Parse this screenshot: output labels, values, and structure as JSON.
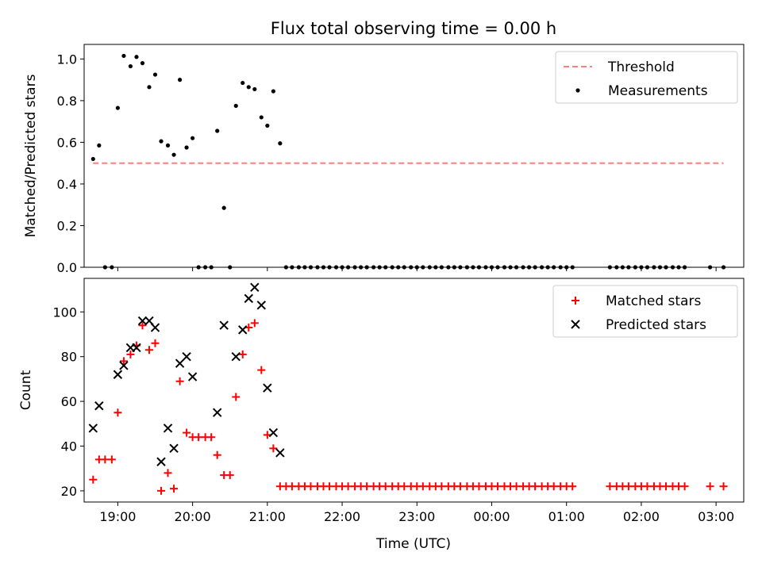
{
  "figure": {
    "title": "Flux total observing time = 0.00 h",
    "xlabel": "Time (UTC)",
    "x_ticks": [
      "19:00",
      "20:00",
      "21:00",
      "22:00",
      "23:00",
      "00:00",
      "01:00",
      "02:00",
      "03:00"
    ]
  },
  "chart_data": [
    {
      "type": "scatter",
      "ylabel": "Matched/Predicted stars",
      "xlim": [
        18.55,
        27.37
      ],
      "ylim": [
        0,
        1.07
      ],
      "y_ticks": [
        "0.0",
        "0.2",
        "0.4",
        "0.6",
        "0.8",
        "1.0"
      ],
      "y_tick_values": [
        0,
        0.2,
        0.4,
        0.6,
        0.8,
        1.0
      ],
      "legend": {
        "position": "top-right",
        "entries": [
          "Threshold",
          "Measurements"
        ]
      },
      "series": [
        {
          "name": "Threshold",
          "kind": "dashed-line",
          "color": "#ff7f7f",
          "x": [
            18.67,
            27.1
          ],
          "y": [
            0.5,
            0.5
          ]
        },
        {
          "name": "Measurements",
          "kind": "dot",
          "color": "#000000",
          "points": [
            [
              18.67,
              0.52
            ],
            [
              18.75,
              0.585
            ],
            [
              18.83,
              0
            ],
            [
              18.92,
              0
            ],
            [
              19.0,
              0.765
            ],
            [
              19.08,
              1.015
            ],
            [
              19.17,
              0.965
            ],
            [
              19.25,
              1.01
            ],
            [
              19.33,
              0.98
            ],
            [
              19.42,
              0.865
            ],
            [
              19.5,
              0.925
            ],
            [
              19.58,
              0.605
            ],
            [
              19.67,
              0.585
            ],
            [
              19.75,
              0.54
            ],
            [
              19.83,
              0.9
            ],
            [
              19.92,
              0.575
            ],
            [
              20.0,
              0.62
            ],
            [
              20.08,
              0
            ],
            [
              20.17,
              0
            ],
            [
              20.25,
              0
            ],
            [
              20.33,
              0.655
            ],
            [
              20.42,
              0.285
            ],
            [
              20.5,
              0
            ],
            [
              20.58,
              0.775
            ],
            [
              20.67,
              0.885
            ],
            [
              20.75,
              0.865
            ],
            [
              20.83,
              0.855
            ],
            [
              20.92,
              0.72
            ],
            [
              21.0,
              0.68
            ],
            [
              21.08,
              0.845
            ],
            [
              21.17,
              0.595
            ],
            [
              21.25,
              0
            ],
            [
              21.33,
              0
            ],
            [
              21.42,
              0
            ],
            [
              21.5,
              0
            ],
            [
              21.58,
              0
            ],
            [
              21.67,
              0
            ],
            [
              21.75,
              0
            ],
            [
              21.83,
              0
            ],
            [
              21.92,
              0
            ],
            [
              22.0,
              0
            ],
            [
              22.08,
              0
            ],
            [
              22.17,
              0
            ],
            [
              22.25,
              0
            ],
            [
              22.33,
              0
            ],
            [
              22.42,
              0
            ],
            [
              22.5,
              0
            ],
            [
              22.58,
              0
            ],
            [
              22.67,
              0
            ],
            [
              22.75,
              0
            ],
            [
              22.83,
              0
            ],
            [
              22.92,
              0
            ],
            [
              23.0,
              0
            ],
            [
              23.08,
              0
            ],
            [
              23.17,
              0
            ],
            [
              23.25,
              0
            ],
            [
              23.33,
              0
            ],
            [
              23.42,
              0
            ],
            [
              23.5,
              0
            ],
            [
              23.58,
              0
            ],
            [
              23.67,
              0
            ],
            [
              23.75,
              0
            ],
            [
              23.83,
              0
            ],
            [
              23.92,
              0
            ],
            [
              24.0,
              0
            ],
            [
              24.08,
              0
            ],
            [
              24.17,
              0
            ],
            [
              24.25,
              0
            ],
            [
              24.33,
              0
            ],
            [
              24.42,
              0
            ],
            [
              24.5,
              0
            ],
            [
              24.58,
              0
            ],
            [
              24.67,
              0
            ],
            [
              24.75,
              0
            ],
            [
              24.83,
              0
            ],
            [
              24.92,
              0
            ],
            [
              25.0,
              0
            ],
            [
              25.08,
              0
            ],
            [
              25.58,
              0
            ],
            [
              25.67,
              0
            ],
            [
              25.75,
              0
            ],
            [
              25.83,
              0
            ],
            [
              25.92,
              0
            ],
            [
              26.0,
              0
            ],
            [
              26.08,
              0
            ],
            [
              26.17,
              0
            ],
            [
              26.25,
              0
            ],
            [
              26.33,
              0
            ],
            [
              26.42,
              0
            ],
            [
              26.5,
              0
            ],
            [
              26.58,
              0
            ],
            [
              26.92,
              0
            ],
            [
              27.1,
              0
            ]
          ]
        }
      ]
    },
    {
      "type": "scatter",
      "ylabel": "Count",
      "xlim": [
        18.55,
        27.37
      ],
      "ylim": [
        15,
        115
      ],
      "y_ticks": [
        "20",
        "40",
        "60",
        "80",
        "100"
      ],
      "y_tick_values": [
        20,
        40,
        60,
        80,
        100
      ],
      "legend": {
        "position": "top-right",
        "entries": [
          "Matched stars",
          "Predicted stars"
        ]
      },
      "series": [
        {
          "name": "Matched stars",
          "kind": "plus",
          "color": "#ff0000",
          "points": [
            [
              18.67,
              25
            ],
            [
              18.75,
              34
            ],
            [
              18.83,
              34
            ],
            [
              18.92,
              34
            ],
            [
              19.0,
              55
            ],
            [
              19.08,
              78
            ],
            [
              19.17,
              81
            ],
            [
              19.25,
              85
            ],
            [
              19.33,
              94
            ],
            [
              19.42,
              83
            ],
            [
              19.5,
              86
            ],
            [
              19.58,
              20
            ],
            [
              19.67,
              28
            ],
            [
              19.75,
              21
            ],
            [
              19.83,
              69
            ],
            [
              19.92,
              46
            ],
            [
              20.0,
              44
            ],
            [
              20.08,
              44
            ],
            [
              20.17,
              44
            ],
            [
              20.25,
              44
            ],
            [
              20.33,
              36
            ],
            [
              20.42,
              27
            ],
            [
              20.5,
              27
            ],
            [
              20.58,
              62
            ],
            [
              20.67,
              81
            ],
            [
              20.75,
              93
            ],
            [
              20.83,
              95
            ],
            [
              20.92,
              74
            ],
            [
              21.0,
              45
            ],
            [
              21.08,
              39
            ],
            [
              21.17,
              22
            ],
            [
              21.25,
              22
            ],
            [
              21.33,
              22
            ],
            [
              21.42,
              22
            ],
            [
              21.5,
              22
            ],
            [
              21.58,
              22
            ],
            [
              21.67,
              22
            ],
            [
              21.75,
              22
            ],
            [
              21.83,
              22
            ],
            [
              21.92,
              22
            ],
            [
              22.0,
              22
            ],
            [
              22.08,
              22
            ],
            [
              22.17,
              22
            ],
            [
              22.25,
              22
            ],
            [
              22.33,
              22
            ],
            [
              22.42,
              22
            ],
            [
              22.5,
              22
            ],
            [
              22.58,
              22
            ],
            [
              22.67,
              22
            ],
            [
              22.75,
              22
            ],
            [
              22.83,
              22
            ],
            [
              22.92,
              22
            ],
            [
              23.0,
              22
            ],
            [
              23.08,
              22
            ],
            [
              23.17,
              22
            ],
            [
              23.25,
              22
            ],
            [
              23.33,
              22
            ],
            [
              23.42,
              22
            ],
            [
              23.5,
              22
            ],
            [
              23.58,
              22
            ],
            [
              23.67,
              22
            ],
            [
              23.75,
              22
            ],
            [
              23.83,
              22
            ],
            [
              23.92,
              22
            ],
            [
              24.0,
              22
            ],
            [
              24.08,
              22
            ],
            [
              24.17,
              22
            ],
            [
              24.25,
              22
            ],
            [
              24.33,
              22
            ],
            [
              24.42,
              22
            ],
            [
              24.5,
              22
            ],
            [
              24.58,
              22
            ],
            [
              24.67,
              22
            ],
            [
              24.75,
              22
            ],
            [
              24.83,
              22
            ],
            [
              24.92,
              22
            ],
            [
              25.0,
              22
            ],
            [
              25.08,
              22
            ],
            [
              25.58,
              22
            ],
            [
              25.67,
              22
            ],
            [
              25.75,
              22
            ],
            [
              25.83,
              22
            ],
            [
              25.92,
              22
            ],
            [
              26.0,
              22
            ],
            [
              26.08,
              22
            ],
            [
              26.17,
              22
            ],
            [
              26.25,
              22
            ],
            [
              26.33,
              22
            ],
            [
              26.42,
              22
            ],
            [
              26.5,
              22
            ],
            [
              26.58,
              22
            ],
            [
              26.92,
              22
            ],
            [
              27.1,
              22
            ]
          ]
        },
        {
          "name": "Predicted stars",
          "kind": "cross",
          "color": "#000000",
          "points": [
            [
              18.67,
              48
            ],
            [
              18.75,
              58
            ],
            [
              19.0,
              72
            ],
            [
              19.08,
              76
            ],
            [
              19.17,
              84
            ],
            [
              19.25,
              84
            ],
            [
              19.33,
              96
            ],
            [
              19.42,
              96
            ],
            [
              19.5,
              93
            ],
            [
              19.58,
              33
            ],
            [
              19.67,
              48
            ],
            [
              19.75,
              39
            ],
            [
              19.83,
              77
            ],
            [
              19.92,
              80
            ],
            [
              20.0,
              71
            ],
            [
              20.33,
              55
            ],
            [
              20.42,
              94
            ],
            [
              20.58,
              80
            ],
            [
              20.67,
              92
            ],
            [
              20.75,
              106
            ],
            [
              20.83,
              111
            ],
            [
              20.92,
              103
            ],
            [
              21.0,
              66
            ],
            [
              21.08,
              46
            ],
            [
              21.17,
              37
            ]
          ]
        }
      ]
    }
  ]
}
